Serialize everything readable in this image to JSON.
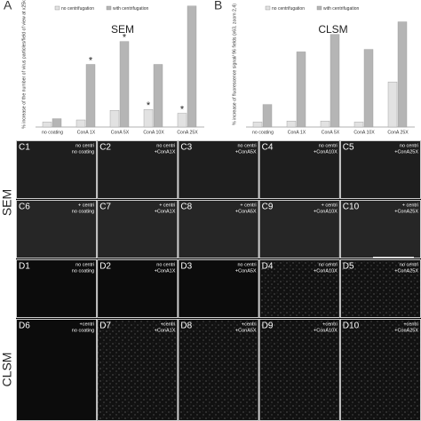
{
  "chart_data": [
    {
      "type": "bar",
      "label": "A",
      "title": "SEM",
      "ylabel": "% increase of the number of virus particles/field of view at x25k",
      "categories": [
        "no coating",
        "ConA 1X",
        "ConA 5X",
        "ConA 10X",
        "ConA 25X"
      ],
      "series": [
        {
          "name": "no centrifugation",
          "color": "#e2e2e2",
          "values": [
            120,
            170,
            400,
            420,
            330
          ]
        },
        {
          "name": "with centrifugation",
          "color": "#b5b5b5",
          "values": [
            200,
            1500,
            2050,
            1500,
            2900
          ]
        }
      ],
      "ylim": [
        0,
        3000
      ],
      "annotations": [
        {
          "text": "*",
          "category": "ConA 1X",
          "series": "with centrifugation"
        },
        {
          "text": "*",
          "category": "ConA 5X",
          "series": "with centrifugation"
        },
        {
          "text": "*",
          "category": "ConA 10X",
          "series": "no centrifugation"
        },
        {
          "text": "*",
          "category": "ConA 25X",
          "series": "no centrifugation"
        }
      ]
    },
    {
      "type": "bar",
      "label": "B",
      "title": "CLSM",
      "ylabel": "% increase of fluorescence signal/ 96 fields (x63, zoom 2,4)",
      "categories": [
        "no coating",
        "ConA 1X",
        "ConA 5X",
        "ConA 10X",
        "ConA 25X"
      ],
      "series": [
        {
          "name": "no centrifugation",
          "color": "#e2e2e2",
          "values": [
            100,
            120,
            120,
            100,
            900
          ]
        },
        {
          "name": "with centrifugation",
          "color": "#b5b5b5",
          "values": [
            450,
            1500,
            1850,
            1550,
            2100
          ]
        }
      ],
      "ylim": [
        0,
        2500
      ]
    }
  ],
  "panels": {
    "row_labels": [
      "SEM",
      "CLSM"
    ],
    "items": [
      {
        "id": "C1",
        "caption": [
          "no centri",
          "no coating"
        ]
      },
      {
        "id": "C2",
        "caption": [
          "no centri",
          "+ConA1X"
        ]
      },
      {
        "id": "C3",
        "caption": [
          "no centri",
          "+ConA5X"
        ]
      },
      {
        "id": "C4",
        "caption": [
          "no centri",
          "+ConA10X"
        ]
      },
      {
        "id": "C5",
        "caption": [
          "no centri",
          "+ConA25X"
        ]
      },
      {
        "id": "C6",
        "caption": [
          "+ centri",
          "no coating"
        ]
      },
      {
        "id": "C7",
        "caption": [
          "+ centri",
          "+ConA1X"
        ]
      },
      {
        "id": "C8",
        "caption": [
          "+ centri",
          "+ConA5X"
        ]
      },
      {
        "id": "C9",
        "caption": [
          "+ centri",
          "+ConA10X"
        ]
      },
      {
        "id": "C10",
        "caption": [
          "+ centri",
          "+ConA25X"
        ]
      },
      {
        "id": "D1",
        "caption": [
          "no centri",
          "no coating"
        ]
      },
      {
        "id": "D2",
        "caption": [
          "no centri",
          "+ConA1X"
        ]
      },
      {
        "id": "D3",
        "caption": [
          "no centri",
          "+ConA5X"
        ]
      },
      {
        "id": "D4",
        "caption": [
          "no centri",
          "+ConA10X"
        ]
      },
      {
        "id": "D5",
        "caption": [
          "no centri",
          "+ConA25X"
        ]
      },
      {
        "id": "D6",
        "caption": [
          "+centri",
          "no coating"
        ]
      },
      {
        "id": "D7",
        "caption": [
          "+centri",
          "+ConA1X"
        ]
      },
      {
        "id": "D8",
        "caption": [
          "+centri",
          "+ConA5X"
        ]
      },
      {
        "id": "D9",
        "caption": [
          "+centri",
          "+ConA10X"
        ]
      },
      {
        "id": "D10",
        "caption": [
          "+centri",
          "+ConA25X"
        ]
      }
    ]
  }
}
